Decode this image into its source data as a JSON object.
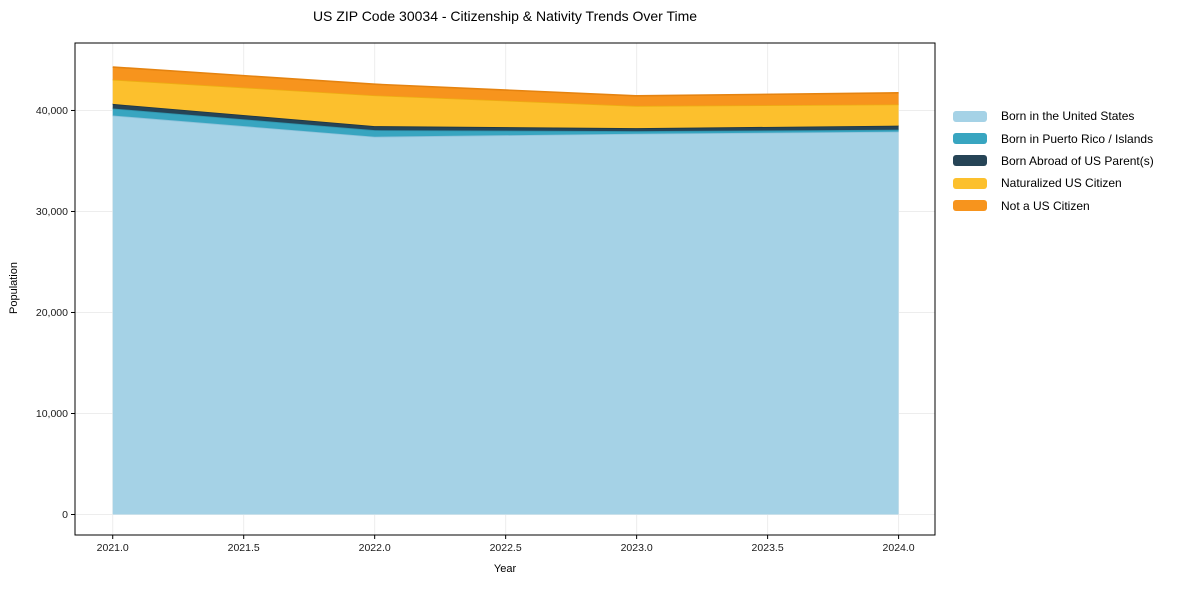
{
  "chart_data": {
    "type": "area",
    "stacked": true,
    "title": "US ZIP Code 30034 - Citizenship & Nativity Trends Over Time",
    "xlabel": "Year",
    "ylabel": "Population",
    "x": [
      2021,
      2022,
      2023,
      2024
    ],
    "xticks": {
      "values": [
        2021,
        2021.5,
        2022,
        2022.5,
        2023,
        2023.5,
        2024
      ],
      "labels": [
        "2021.0",
        "2021.5",
        "2022.0",
        "2022.5",
        "2023.0",
        "2023.5",
        "2024.0"
      ]
    },
    "yticks": {
      "values": [
        0,
        10000,
        20000,
        30000,
        40000
      ],
      "labels": [
        "0",
        "10,000",
        "20,000",
        "30,000",
        "40,000"
      ]
    },
    "xlim": [
      2020.856,
      2024.139
    ],
    "ylim": [
      -2030,
      46680
    ],
    "grid": true,
    "grid_color": "#ededed",
    "spine_color": "#000000",
    "legend_position": "right-outside",
    "series": [
      {
        "name": "Born in the United States",
        "color": "#a5d2e6",
        "edge": "#8ec2da",
        "values": [
          39500,
          37400,
          37700,
          37900
        ]
      },
      {
        "name": "Born in Puerto Rico / Islands",
        "color": "#38a5c0",
        "edge": "#2e92ab",
        "values": [
          700,
          650,
          250,
          200
        ]
      },
      {
        "name": "Born Abroad of US Parent(s)",
        "color": "#264456",
        "edge": "#1d3645",
        "values": [
          450,
          400,
          300,
          400
        ]
      },
      {
        "name": "Naturalized US Citizen",
        "color": "#fcc02d",
        "edge": "#edad12",
        "values": [
          2400,
          3050,
          2200,
          2100
        ]
      },
      {
        "name": "Not a US Citizen",
        "color": "#f7941d",
        "edge": "#e58310",
        "values": [
          1250,
          1100,
          1000,
          1150
        ]
      }
    ],
    "totals": [
      44300,
      42600,
      41450,
      41750
    ]
  }
}
